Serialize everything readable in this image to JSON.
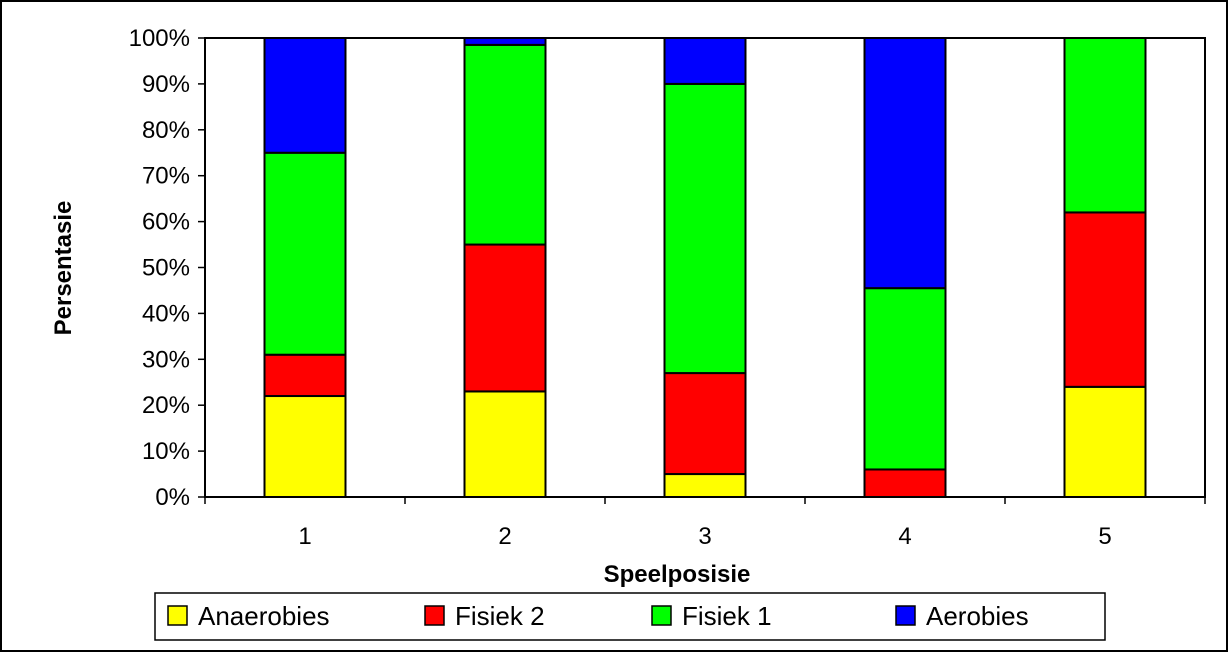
{
  "chart_data": {
    "type": "bar",
    "stacked": true,
    "percent_stacked": true,
    "title": "",
    "xlabel": "Speelposisie",
    "ylabel": "Persentasie",
    "categories": [
      "1",
      "2",
      "3",
      "4",
      "5"
    ],
    "ylim": [
      0,
      100
    ],
    "yticks": [
      "0%",
      "10%",
      "20%",
      "30%",
      "40%",
      "50%",
      "60%",
      "70%",
      "80%",
      "90%",
      "100%"
    ],
    "grid": false,
    "legend_position": "bottom",
    "series": [
      {
        "name": "Anaerobies",
        "color": "#ffff00",
        "values": [
          22,
          23,
          5,
          0,
          24
        ]
      },
      {
        "name": "Fisiek 2",
        "color": "#ff0000",
        "values": [
          9,
          32,
          22,
          6,
          38
        ]
      },
      {
        "name": "Fisiek 1",
        "color": "#00ff00",
        "values": [
          44,
          43.5,
          63,
          39.5,
          38
        ]
      },
      {
        "name": "Aerobies",
        "color": "#0000ff",
        "values": [
          25,
          1.5,
          10,
          54.5,
          0
        ]
      }
    ]
  }
}
